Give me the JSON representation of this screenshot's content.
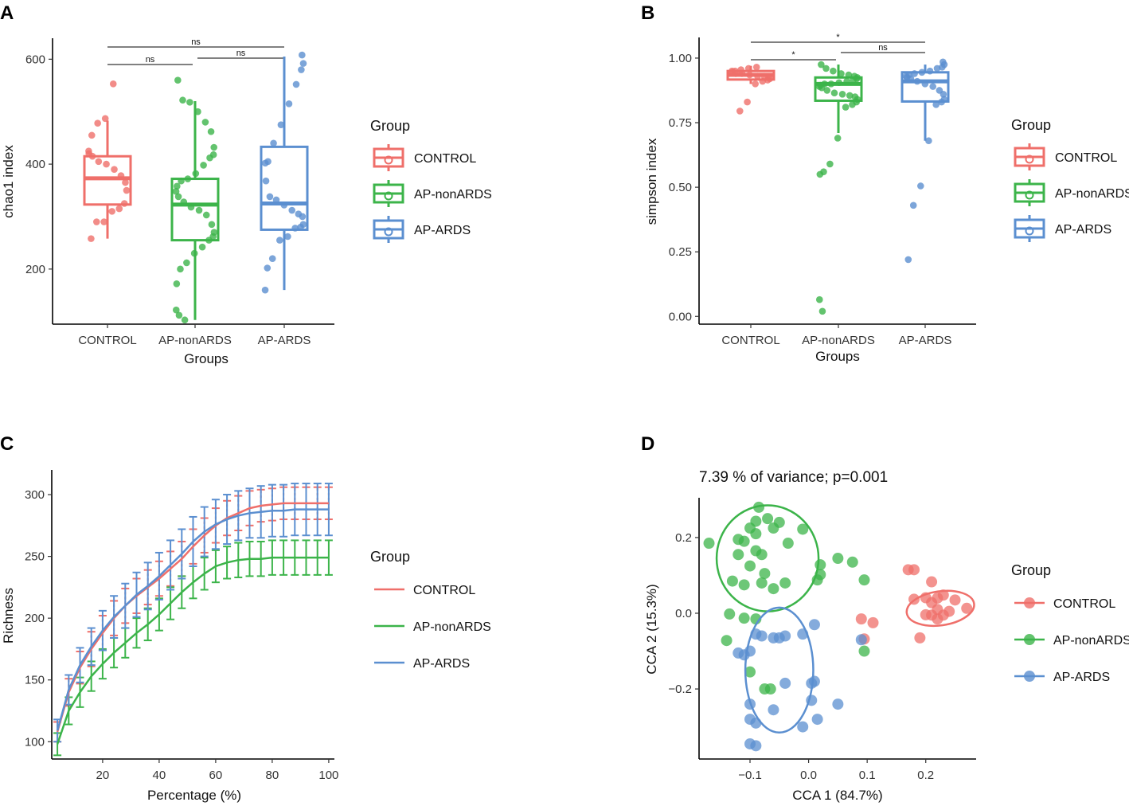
{
  "colors": {
    "CONTROL": "#ef6f6a",
    "AP-nonARDS": "#3cb44a",
    "AP-ARDS": "#5b8fd0"
  },
  "chart_data": [
    {
      "panel": "A",
      "type": "box",
      "xlabel": "Groups",
      "ylabel": "chao1 index",
      "ylim": [
        95,
        640
      ],
      "yticks": [
        200,
        400,
        600
      ],
      "categories": [
        "CONTROL",
        "AP-nonARDS",
        "AP-ARDS"
      ],
      "boxes": [
        {
          "group": "CONTROL",
          "q1": 323,
          "median": 373,
          "q3": 415,
          "whisker_low": 258,
          "whisker_high": 483
        },
        {
          "group": "AP-nonARDS",
          "q1": 255,
          "median": 323,
          "q3": 372,
          "whisker_low": 103,
          "whisker_high": 520
        },
        {
          "group": "AP-ARDS",
          "q1": 275,
          "median": 325,
          "q3": 433,
          "whisker_low": 160,
          "whisker_high": 605
        }
      ],
      "points": [
        [
          553,
          487,
          478,
          455,
          425,
          420,
          415,
          405,
          400,
          390,
          378,
          365,
          350,
          325,
          315,
          310,
          290,
          290,
          258
        ],
        [
          560,
          522,
          518,
          500,
          480,
          462,
          432,
          418,
          412,
          398,
          382,
          372,
          368,
          358,
          348,
          338,
          328,
          318,
          312,
          303,
          285,
          270,
          262,
          255,
          242,
          230,
          212,
          200,
          172,
          122,
          112,
          103
        ],
        [
          608,
          592,
          580,
          552,
          515,
          475,
          440,
          405,
          402,
          368,
          338,
          332,
          322,
          312,
          305,
          300,
          285,
          280,
          278,
          262,
          255,
          220,
          202,
          160
        ]
      ],
      "comparisons": [
        {
          "from": "CONTROL",
          "to": "AP-ARDS",
          "label": "ns"
        },
        {
          "from": "CONTROL",
          "to": "AP-nonARDS",
          "label": "ns"
        },
        {
          "from": "AP-nonARDS",
          "to": "AP-ARDS",
          "label": "ns"
        }
      ],
      "legend_title": "Group",
      "legend": [
        "CONTROL",
        "AP-nonARDS",
        "AP-ARDS"
      ]
    },
    {
      "panel": "B",
      "type": "box",
      "xlabel": "Groups",
      "ylabel": "simpson index",
      "ylim": [
        -0.03,
        1.08
      ],
      "yticks": [
        "0.00",
        "0.25",
        "0.50",
        "0.75",
        "1.00"
      ],
      "categories": [
        "CONTROL",
        "AP-nonARDS",
        "AP-ARDS"
      ],
      "boxes": [
        {
          "group": "CONTROL",
          "q1": 0.917,
          "median": 0.935,
          "q3": 0.95,
          "whisker_low": 0.9,
          "whisker_high": 0.97
        },
        {
          "group": "AP-nonARDS",
          "q1": 0.835,
          "median": 0.9,
          "q3": 0.925,
          "whisker_low": 0.71,
          "whisker_high": 0.975
        },
        {
          "group": "AP-ARDS",
          "q1": 0.832,
          "median": 0.91,
          "q3": 0.945,
          "whisker_low": 0.68,
          "whisker_high": 0.975
        }
      ],
      "points": [
        [
          0.965,
          0.96,
          0.955,
          0.95,
          0.95,
          0.945,
          0.94,
          0.94,
          0.935,
          0.93,
          0.93,
          0.925,
          0.92,
          0.915,
          0.91,
          0.9,
          0.83,
          0.795
        ],
        [
          0.975,
          0.96,
          0.95,
          0.94,
          0.935,
          0.93,
          0.925,
          0.92,
          0.915,
          0.91,
          0.905,
          0.9,
          0.9,
          0.895,
          0.89,
          0.885,
          0.875,
          0.865,
          0.86,
          0.855,
          0.85,
          0.84,
          0.83,
          0.82,
          0.81,
          0.69,
          0.59,
          0.56,
          0.55,
          0.065,
          0.02
        ],
        [
          0.985,
          0.975,
          0.965,
          0.96,
          0.95,
          0.945,
          0.94,
          0.935,
          0.93,
          0.925,
          0.92,
          0.91,
          0.9,
          0.89,
          0.875,
          0.86,
          0.84,
          0.83,
          0.82,
          0.68,
          0.505,
          0.43,
          0.22
        ]
      ],
      "comparisons": [
        {
          "from": "CONTROL",
          "to": "AP-ARDS",
          "label": "*"
        },
        {
          "from": "CONTROL",
          "to": "AP-nonARDS",
          "label": "*"
        },
        {
          "from": "AP-nonARDS",
          "to": "AP-ARDS",
          "label": "ns"
        }
      ],
      "legend_title": "Group",
      "legend": [
        "CONTROL",
        "AP-nonARDS",
        "AP-ARDS"
      ]
    },
    {
      "panel": "C",
      "type": "line",
      "xlabel": "Percentage (%)",
      "ylabel": "Richness",
      "xlim": [
        2,
        102
      ],
      "ylim": [
        86,
        320
      ],
      "xticks": [
        20,
        40,
        60,
        80,
        100
      ],
      "yticks": [
        100,
        150,
        200,
        250,
        300
      ],
      "x": [
        4,
        8,
        12,
        16,
        20,
        24,
        28,
        32,
        36,
        40,
        44,
        48,
        52,
        56,
        60,
        64,
        68,
        72,
        76,
        80,
        84,
        88,
        92,
        96,
        100
      ],
      "series": [
        {
          "name": "CONTROL",
          "values": [
            108,
            140,
            160,
            175,
            188,
            200,
            210,
            218,
            225,
            232,
            240,
            248,
            258,
            267,
            275,
            281,
            285,
            289,
            291,
            292,
            293,
            293,
            293,
            293,
            293
          ],
          "error": [
            8,
            11,
            13,
            14,
            14,
            14,
            14,
            14,
            14,
            14,
            14,
            14,
            14,
            14,
            14,
            14,
            14,
            14,
            13,
            13,
            13,
            13,
            13,
            13,
            13
          ]
        },
        {
          "name": "AP-nonARDS",
          "values": [
            98,
            125,
            140,
            153,
            163,
            172,
            180,
            188,
            195,
            203,
            212,
            221,
            229,
            236,
            242,
            245,
            247,
            248,
            248,
            249,
            249,
            249,
            249,
            249,
            249
          ],
          "error": [
            9,
            11,
            12,
            12,
            12,
            12,
            12,
            12,
            13,
            13,
            13,
            13,
            13,
            13,
            13,
            13,
            14,
            14,
            14,
            14,
            14,
            14,
            14,
            14,
            14
          ]
        },
        {
          "name": "AP-ARDS",
          "values": [
            109,
            142,
            162,
            177,
            190,
            201,
            210,
            219,
            226,
            234,
            243,
            252,
            262,
            270,
            276,
            280,
            283,
            285,
            286,
            287,
            287,
            288,
            288,
            288,
            288
          ],
          "error": [
            9,
            12,
            14,
            15,
            16,
            17,
            18,
            18,
            19,
            19,
            20,
            20,
            20,
            20,
            20,
            20,
            20,
            20,
            21,
            21,
            21,
            21,
            21,
            21,
            21
          ]
        }
      ],
      "legend_title": "Group",
      "legend": [
        "CONTROL",
        "AP-nonARDS",
        "AP-ARDS"
      ]
    },
    {
      "panel": "D",
      "type": "scatter",
      "title": "7.39 % of variance; p=0.001",
      "xlabel": "CCA 1 (84.7%)",
      "ylabel": "CCA 2 (15.3%)",
      "xlim": [
        -0.187,
        0.286
      ],
      "ylim": [
        -0.385,
        0.305
      ],
      "xticks": [
        "−0.1",
        "0.0",
        "0.1",
        "0.2"
      ],
      "ytick_labels": [
        "0.2",
        "0.0",
        "−0.2"
      ],
      "yticks": [
        0.2,
        0.0,
        -0.2
      ],
      "series": [
        {
          "name": "CONTROL",
          "points": [
            [
              0.17,
              0.115
            ],
            [
              0.18,
              0.115
            ],
            [
              0.21,
              0.083
            ],
            [
              0.18,
              0.037
            ],
            [
              0.23,
              0.048
            ],
            [
              0.2,
              0.041
            ],
            [
              0.22,
              0.04
            ],
            [
              0.25,
              0.035
            ],
            [
              0.21,
              0.028
            ],
            [
              0.27,
              0.013
            ],
            [
              0.22,
              0.01
            ],
            [
              0.24,
              0.005
            ],
            [
              0.2,
              -0.004
            ],
            [
              0.23,
              -0.005
            ],
            [
              0.21,
              -0.005
            ],
            [
              0.22,
              -0.015
            ],
            [
              0.19,
              -0.065
            ],
            [
              0.09,
              -0.015
            ],
            [
              0.11,
              -0.025
            ],
            [
              0.095,
              -0.068
            ]
          ],
          "ellipse": {
            "cx": 0.225,
            "cy": 0.013,
            "rx": 0.058,
            "ry": 0.045,
            "angle_deg": 8
          }
        },
        {
          "name": "AP-nonARDS",
          "points": [
            [
              -0.085,
              0.28
            ],
            [
              -0.07,
              0.25
            ],
            [
              -0.05,
              0.24
            ],
            [
              -0.09,
              0.243
            ],
            [
              -0.1,
              0.225
            ],
            [
              -0.01,
              0.222
            ],
            [
              -0.09,
              0.21
            ],
            [
              -0.06,
              0.225
            ],
            [
              -0.12,
              0.195
            ],
            [
              -0.11,
              0.19
            ],
            [
              -0.035,
              0.185
            ],
            [
              -0.17,
              0.185
            ],
            [
              -0.09,
              0.165
            ],
            [
              -0.08,
              0.155
            ],
            [
              -0.12,
              0.155
            ],
            [
              0.02,
              0.128
            ],
            [
              -0.1,
              0.125
            ],
            [
              -0.075,
              0.105
            ],
            [
              0.075,
              0.135
            ],
            [
              0.05,
              0.145
            ],
            [
              0.02,
              0.102
            ],
            [
              -0.13,
              0.085
            ],
            [
              -0.11,
              0.075
            ],
            [
              -0.08,
              0.08
            ],
            [
              -0.04,
              0.08
            ],
            [
              -0.06,
              0.065
            ],
            [
              0.095,
              0.088
            ],
            [
              0.015,
              0.088
            ],
            [
              -0.135,
              -0.002
            ],
            [
              -0.11,
              -0.013
            ],
            [
              -0.09,
              -0.015
            ],
            [
              -0.14,
              -0.072
            ],
            [
              -0.1,
              -0.155
            ],
            [
              -0.075,
              -0.2
            ],
            [
              -0.065,
              -0.2
            ],
            [
              0.095,
              -0.1
            ]
          ],
          "ellipse": {
            "cx": -0.07,
            "cy": 0.145,
            "rx": 0.087,
            "ry": 0.14,
            "angle_deg": 0
          }
        },
        {
          "name": "AP-ARDS",
          "points": [
            [
              -0.09,
              -0.055
            ],
            [
              -0.08,
              -0.06
            ],
            [
              -0.06,
              -0.065
            ],
            [
              -0.05,
              -0.065
            ],
            [
              -0.04,
              -0.06
            ],
            [
              -0.01,
              -0.055
            ],
            [
              0.01,
              -0.03
            ],
            [
              -0.12,
              -0.105
            ],
            [
              -0.1,
              -0.1
            ],
            [
              -0.11,
              -0.11
            ],
            [
              0.09,
              -0.07
            ],
            [
              0.005,
              -0.185
            ],
            [
              0.01,
              -0.18
            ],
            [
              -0.04,
              -0.185
            ],
            [
              0.005,
              -0.23
            ],
            [
              0.05,
              -0.24
            ],
            [
              -0.1,
              -0.24
            ],
            [
              -0.06,
              -0.255
            ],
            [
              -0.1,
              -0.28
            ],
            [
              -0.09,
              -0.29
            ],
            [
              0.015,
              -0.28
            ],
            [
              -0.01,
              -0.3
            ],
            [
              -0.1,
              -0.345
            ],
            [
              -0.09,
              -0.35
            ]
          ],
          "ellipse": {
            "cx": -0.05,
            "cy": -0.15,
            "rx": 0.058,
            "ry": 0.165,
            "angle_deg": 0
          }
        }
      ],
      "legend_title": "Group",
      "legend": [
        "CONTROL",
        "AP-nonARDS",
        "AP-ARDS"
      ]
    }
  ]
}
